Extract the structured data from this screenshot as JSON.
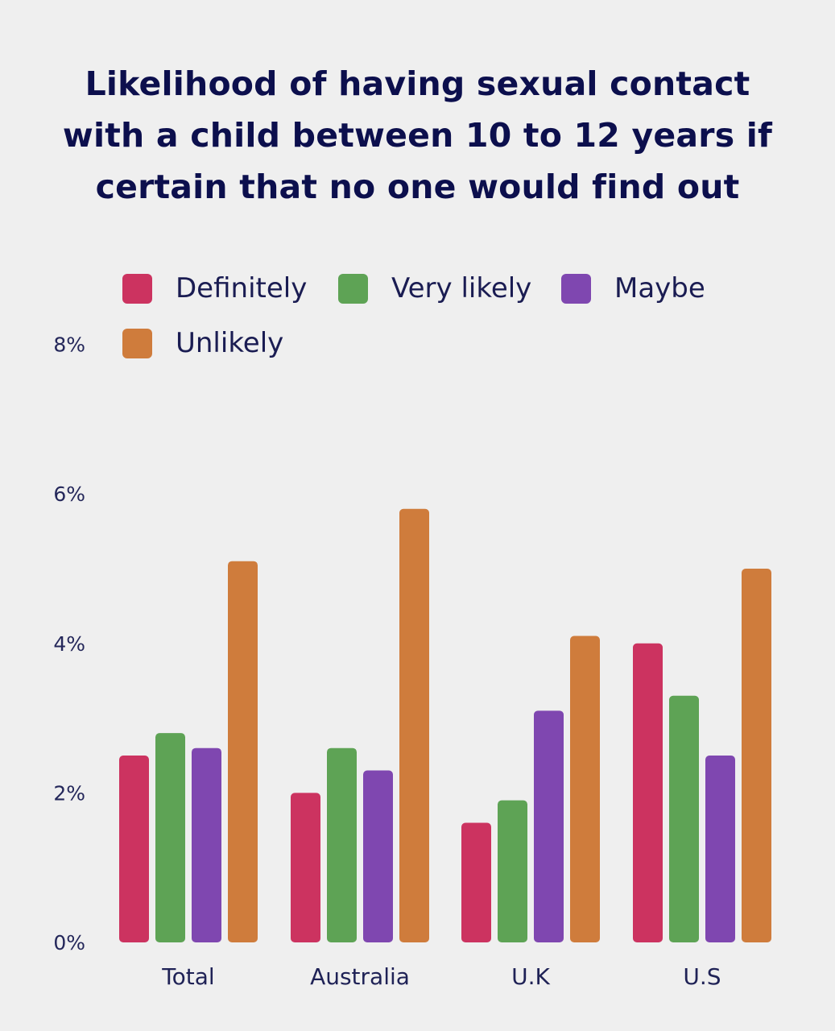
{
  "chart_data": {
    "type": "bar",
    "title": "Likelihood of having sexual contact with a child between 10 to 12 years if certain that no one would find out",
    "title_lines": [
      "Likelihood of having sexual contact",
      "with a child between 10 to 12 years if",
      "certain that no one would find out"
    ],
    "categories": [
      "Total",
      "Australia",
      "U.K",
      "U.S"
    ],
    "series": [
      {
        "name": "Definitely",
        "color": "#cc3360",
        "values": [
          2.5,
          2.0,
          1.6,
          4.0
        ]
      },
      {
        "name": "Very likely",
        "color": "#5ea355",
        "values": [
          2.8,
          2.6,
          1.9,
          3.3
        ]
      },
      {
        "name": "Maybe",
        "color": "#7f47b0",
        "values": [
          2.6,
          2.3,
          3.1,
          2.5
        ]
      },
      {
        "name": "Unlikely",
        "color": "#cf7c3c",
        "values": [
          5.1,
          5.8,
          4.1,
          5.0
        ]
      }
    ],
    "xlabel": "",
    "ylabel": "",
    "ylim": [
      0,
      8
    ],
    "y_ticks": [
      "0%",
      "2%",
      "4%",
      "6%",
      "8%"
    ],
    "grid": false,
    "legend_position": "top"
  }
}
